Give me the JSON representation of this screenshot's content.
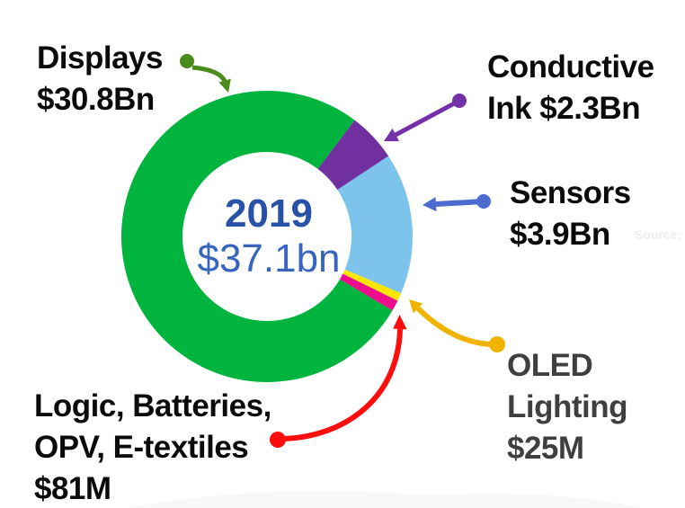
{
  "page": {
    "background": "#ffffff"
  },
  "chart_data": {
    "type": "pie",
    "subtype": "donut",
    "legend_position": "callout-labels",
    "grid": false,
    "center_label": {
      "year": "2019",
      "total": "$37.1bn"
    },
    "total_value_usd_bn": 37.1,
    "slices": [
      {
        "label": "Displays",
        "value_label": "$30.8Bn",
        "value_usd_bn": 30.8,
        "color": "#00b43e",
        "display_start_deg": 120.5,
        "display_end_deg": 397.0
      },
      {
        "label": "Conductive Ink",
        "value_label": "$2.3Bn",
        "value_usd_bn": 2.3,
        "color": "#7030a0",
        "display_start_deg": 37.0,
        "display_end_deg": 56.5
      },
      {
        "label": "Sensors",
        "value_label": "$3.9Bn",
        "value_usd_bn": 3.9,
        "color": "#7dc4ec",
        "display_start_deg": 56.5,
        "display_end_deg": 113.0
      },
      {
        "label": "OLED Lighting",
        "value_label": "$25M",
        "value_usd_bn": 0.025,
        "color": "#ffe600",
        "display_start_deg": 113.0,
        "display_end_deg": 116.2
      },
      {
        "label": "Logic, Batteries, OPV, E-textiles",
        "value_label": "$81M",
        "value_usd_bn": 0.081,
        "color": "#ec0c8c",
        "display_start_deg": 116.2,
        "display_end_deg": 120.5
      }
    ],
    "display_note": "tiny slices drawn exaggerated for visibility, as in source image"
  },
  "labels": {
    "displays": {
      "line1": "Displays",
      "line2": "$30.8Bn",
      "color": "#0b0b0b"
    },
    "conductive": {
      "line1": "Conductive",
      "line2": "Ink $2.3Bn",
      "color": "#0b0b0b"
    },
    "sensors": {
      "line1": "Sensors",
      "line2": "$3.9Bn",
      "color": "#0b0b0b"
    },
    "oled": {
      "line1": "OLED",
      "line2": "Lighting",
      "line3": "$25M",
      "color": "#3f3f3f"
    },
    "logic": {
      "line1": "Logic, Batteries,",
      "line2": "OPV, E-textiles",
      "line3": "$81M",
      "color": "#0b0b0b"
    }
  },
  "annotations": {
    "displays": {
      "arrow_color": "#4a8c1c"
    },
    "conductive": {
      "arrow_color": "#7430a8"
    },
    "sensors": {
      "arrow_color": "#4b6bce"
    },
    "oled": {
      "arrow_color": "#f0b400"
    },
    "logic": {
      "arrow_color": "#fe0d0d"
    }
  },
  "center_text_colors": {
    "year": "#2852a8",
    "total": "#3765bd"
  },
  "watermark": {
    "text": "Source:",
    "color": "#f2ecec"
  }
}
